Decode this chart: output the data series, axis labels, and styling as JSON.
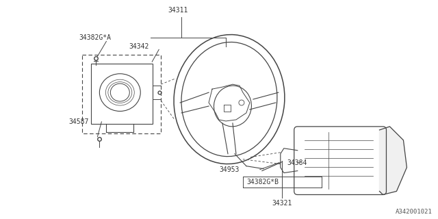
{
  "bg_color": "#ffffff",
  "line_color": "#444444",
  "label_color": "#333333",
  "part_id": "A342001021",
  "font_size": 7.0,
  "fig_width": 6.4,
  "fig_height": 3.2,
  "dpi": 100
}
